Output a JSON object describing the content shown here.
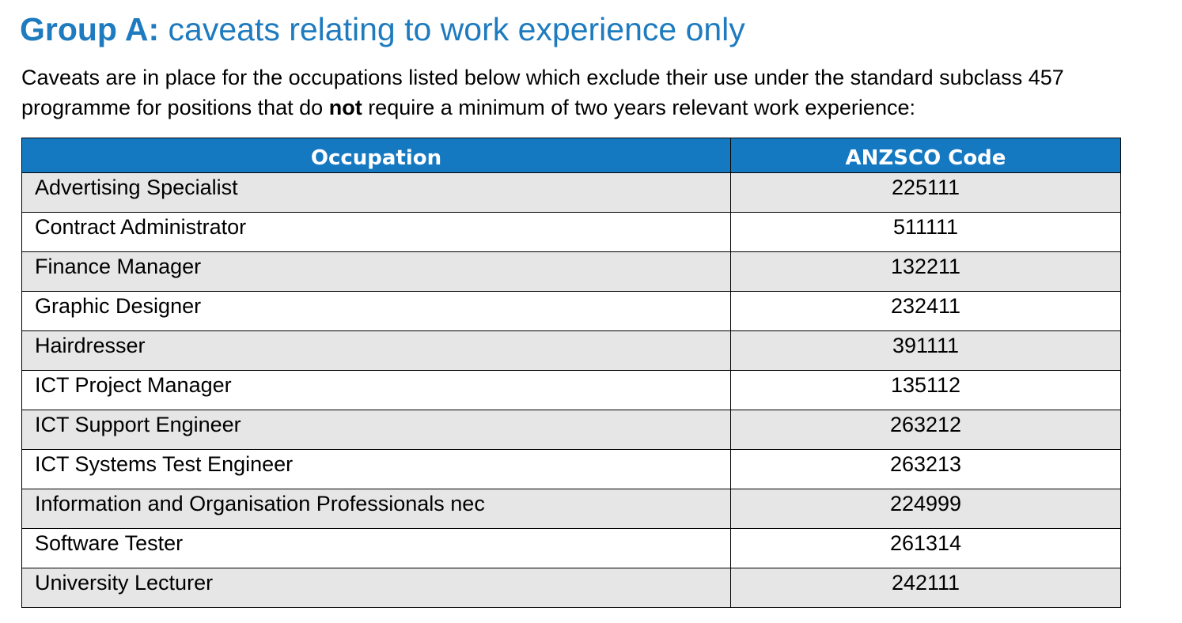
{
  "heading": {
    "bold_part": "Group A:",
    "rest": " caveats relating to work experience only"
  },
  "intro": {
    "before_bold": "Caveats are in place for the occupations listed below which exclude  their use under the standard subclass 457 programme for positions that do ",
    "bold": "not",
    "after_bold": " require a minimum of two years relevant work experience:"
  },
  "colors": {
    "heading_text": "#1e7bbf",
    "table_header_bg": "#1579c1",
    "row_shade": "#e6e6e6"
  },
  "table": {
    "columns": [
      "Occupation",
      "ANZSCO Code"
    ],
    "rows": [
      {
        "occupation": "Advertising Specialist",
        "code": "225111"
      },
      {
        "occupation": "Contract Administrator",
        "code": "511111"
      },
      {
        "occupation": "Finance Manager",
        "code": "132211"
      },
      {
        "occupation": "Graphic Designer",
        "code": "232411"
      },
      {
        "occupation": "Hairdresser",
        "code": "391111"
      },
      {
        "occupation": "ICT Project Manager",
        "code": "135112"
      },
      {
        "occupation": "ICT Support Engineer",
        "code": "263212"
      },
      {
        "occupation": "ICT Systems Test Engineer",
        "code": "263213"
      },
      {
        "occupation": "Information and Organisation Professionals nec",
        "code": "224999"
      },
      {
        "occupation": "Software Tester",
        "code": "261314"
      },
      {
        "occupation": "University Lecturer",
        "code": "242111"
      }
    ]
  }
}
